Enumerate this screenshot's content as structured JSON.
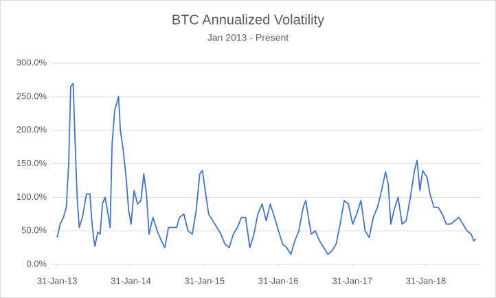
{
  "chart_data": {
    "type": "line",
    "title": "BTC Annualized Volatility",
    "subtitle": "Jan 2013 - Present",
    "x": [
      "2013-01-31",
      "2013-02-15",
      "2013-03-03",
      "2013-03-17",
      "2013-03-29",
      "2013-04-08",
      "2013-04-20",
      "2013-04-30",
      "2013-05-10",
      "2013-05-20",
      "2013-06-05",
      "2013-06-25",
      "2013-07-12",
      "2013-07-20",
      "2013-07-30",
      "2013-08-06",
      "2013-08-20",
      "2013-09-01",
      "2013-09-12",
      "2013-09-25",
      "2013-10-10",
      "2013-10-20",
      "2013-10-30",
      "2013-11-12",
      "2013-12-01",
      "2013-12-10",
      "2013-12-24",
      "2014-01-07",
      "2014-01-20",
      "2014-02-01",
      "2014-02-16",
      "2014-03-05",
      "2014-03-22",
      "2014-04-05",
      "2014-04-18",
      "2014-05-01",
      "2014-05-20",
      "2014-06-10",
      "2014-07-01",
      "2014-07-18",
      "2014-08-05",
      "2014-08-25",
      "2014-09-15",
      "2014-09-28",
      "2014-10-20",
      "2014-11-10",
      "2014-12-01",
      "2014-12-20",
      "2015-01-07",
      "2015-01-20",
      "2015-02-03",
      "2015-02-20",
      "2015-03-12",
      "2015-04-02",
      "2015-04-22",
      "2015-05-12",
      "2015-06-02",
      "2015-06-22",
      "2015-07-12",
      "2015-08-02",
      "2015-08-22",
      "2015-09-12",
      "2015-10-02",
      "2015-10-22",
      "2015-11-12",
      "2015-12-02",
      "2015-12-22",
      "2016-01-12",
      "2016-02-01",
      "2016-02-22",
      "2016-03-12",
      "2016-04-02",
      "2016-04-22",
      "2016-05-12",
      "2016-06-02",
      "2016-06-15",
      "2016-06-28",
      "2016-07-12",
      "2016-08-01",
      "2016-08-22",
      "2016-09-12",
      "2016-10-02",
      "2016-10-22",
      "2016-11-12",
      "2016-12-02",
      "2016-12-22",
      "2017-01-12",
      "2017-02-02",
      "2017-02-22",
      "2017-03-15",
      "2017-04-05",
      "2017-04-25",
      "2017-05-15",
      "2017-06-05",
      "2017-06-25",
      "2017-07-15",
      "2017-07-28",
      "2017-08-10",
      "2017-08-25",
      "2017-09-15",
      "2017-10-05",
      "2017-10-25",
      "2017-11-15",
      "2017-12-05",
      "2017-12-18",
      "2018-01-01",
      "2018-01-15",
      "2018-02-05",
      "2018-02-20",
      "2018-03-12",
      "2018-04-02",
      "2018-04-22",
      "2018-05-12",
      "2018-06-02",
      "2018-06-22",
      "2018-07-12",
      "2018-08-02",
      "2018-08-22",
      "2018-09-12",
      "2018-09-25",
      "2018-10-05"
    ],
    "series": [
      {
        "name": "BTC Annualized Volatility",
        "color": "#4472c4",
        "values": [
          40,
          60,
          70,
          85,
          150,
          265,
          270,
          180,
          100,
          55,
          70,
          105,
          105,
          70,
          40,
          27,
          48,
          45,
          90,
          100,
          75,
          55,
          180,
          230,
          250,
          200,
          170,
          130,
          80,
          60,
          110,
          90,
          95,
          135,
          105,
          45,
          70,
          50,
          35,
          25,
          55,
          55,
          55,
          70,
          75,
          50,
          45,
          80,
          135,
          140,
          110,
          75,
          65,
          55,
          45,
          30,
          25,
          45,
          55,
          70,
          70,
          25,
          45,
          75,
          90,
          65,
          90,
          70,
          50,
          30,
          25,
          15,
          35,
          50,
          85,
          95,
          70,
          45,
          50,
          35,
          25,
          15,
          20,
          30,
          60,
          95,
          90,
          60,
          75,
          95,
          50,
          40,
          70,
          85,
          110,
          138,
          120,
          60,
          80,
          100,
          60,
          65,
          100,
          140,
          155,
          110,
          140,
          130,
          105,
          85,
          85,
          75,
          60,
          60,
          65,
          70,
          60,
          50,
          45,
          35,
          38
        ]
      }
    ],
    "xlim": [
      "2013-01-03",
      "2018-10-30"
    ],
    "xticks": [
      {
        "value": "2013-01-31",
        "label": "31-Jan-13"
      },
      {
        "value": "2014-01-31",
        "label": "31-Jan-14"
      },
      {
        "value": "2015-01-31",
        "label": "31-Jan-15"
      },
      {
        "value": "2016-01-31",
        "label": "31-Jan-16"
      },
      {
        "value": "2017-01-31",
        "label": "31-Jan-17"
      },
      {
        "value": "2018-01-31",
        "label": "31-Jan-18"
      }
    ],
    "ylim": [
      0,
      300
    ],
    "yticks": [
      {
        "value": 0,
        "label": "0.0%"
      },
      {
        "value": 50,
        "label": "50.0%"
      },
      {
        "value": 100,
        "label": "100.0%"
      },
      {
        "value": 150,
        "label": "150.0%"
      },
      {
        "value": 200,
        "label": "200.0%"
      },
      {
        "value": 250,
        "label": "250.0%"
      },
      {
        "value": 300,
        "label": "300.0%"
      }
    ],
    "grid": true
  }
}
